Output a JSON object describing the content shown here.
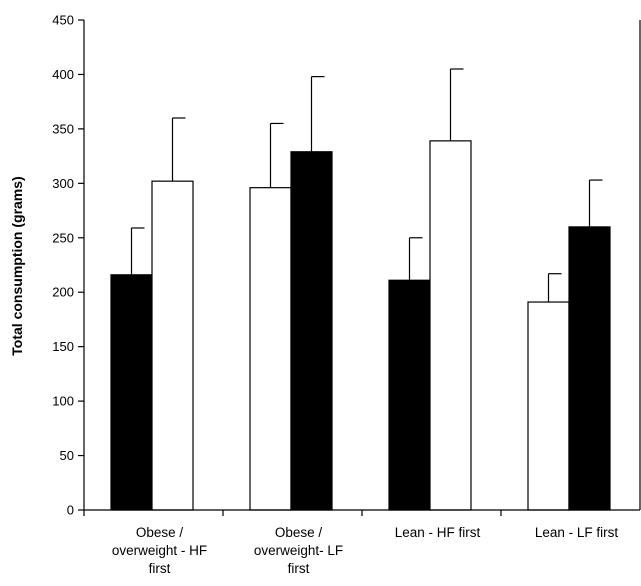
{
  "chart_data": {
    "type": "bar",
    "ylabel": "Total consumption (grams)",
    "xlabel": "",
    "ylim": [
      0,
      450
    ],
    "yticks": [
      0,
      50,
      100,
      150,
      200,
      250,
      300,
      350,
      400,
      450
    ],
    "categories": [
      [
        "Obese /",
        "overweight - HF",
        "first"
      ],
      [
        "Obese /",
        "overweight- LF",
        "first"
      ],
      [
        "Lean - HF first"
      ],
      [
        "Lean - LF first"
      ]
    ],
    "bars": [
      [
        {
          "value": 216,
          "error": 43,
          "fill": "#000000"
        },
        {
          "value": 302,
          "error": 58,
          "fill": "#ffffff"
        }
      ],
      [
        {
          "value": 296,
          "error": 59,
          "fill": "#ffffff"
        },
        {
          "value": 329,
          "error": 69,
          "fill": "#000000"
        }
      ],
      [
        {
          "value": 211,
          "error": 39,
          "fill": "#000000"
        },
        {
          "value": 339,
          "error": 66,
          "fill": "#ffffff"
        }
      ],
      [
        {
          "value": 191,
          "error": 26,
          "fill": "#ffffff"
        },
        {
          "value": 260,
          "error": 43,
          "fill": "#000000"
        }
      ]
    ],
    "grid": false,
    "legend": "none"
  }
}
